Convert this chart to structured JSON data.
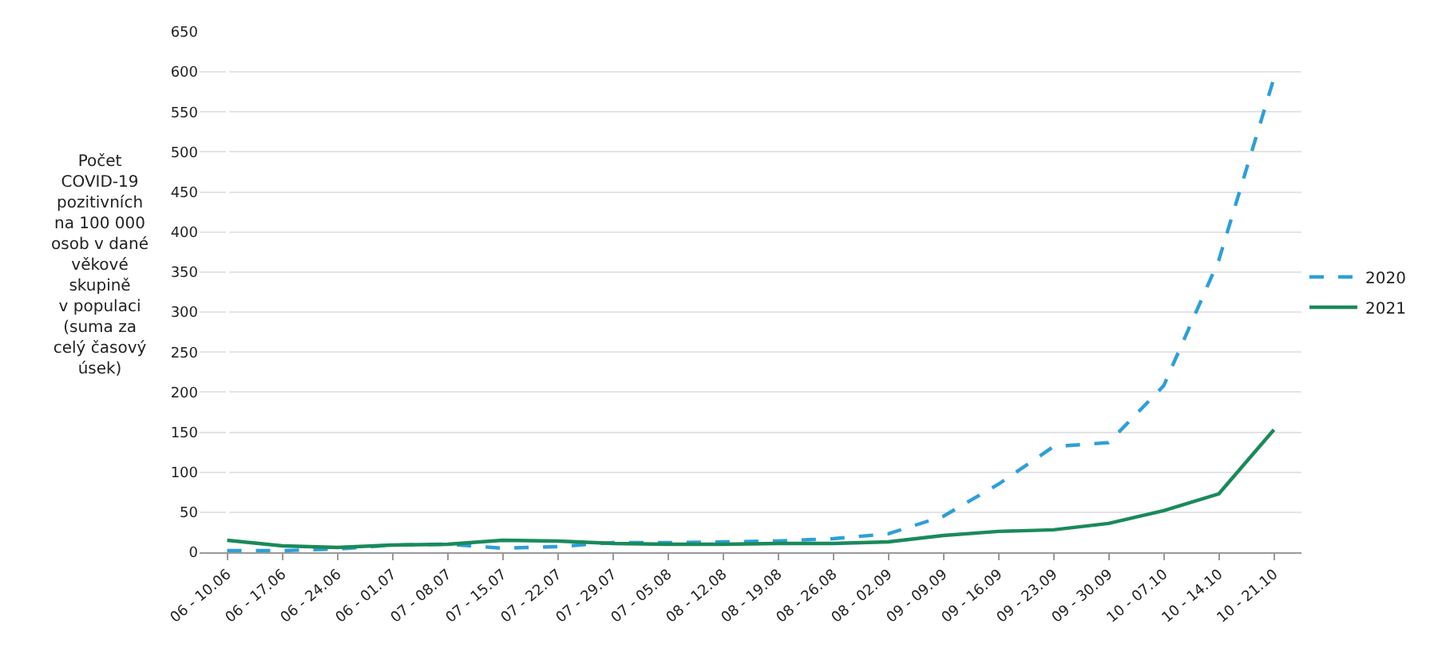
{
  "chart_data": {
    "type": "line",
    "ylabel": "Počet\nCOVID-19\npozitivních\nna 100 000\nosob v dané\nvěkové\nskupině\nv populaci\n(suma za\ncelý časový\núsek)",
    "categories": [
      "06 - 10.06",
      "06 - 17.06",
      "06 - 24.06",
      "06 - 01.07",
      "07 - 08.07",
      "07 - 15.07",
      "07 - 22.07",
      "07 - 29.07",
      "07 - 05.08",
      "08 - 12.08",
      "08 - 19.08",
      "08 - 26.08",
      "08 - 02.09",
      "09 - 09.09",
      "09 - 16.09",
      "09 - 23.09",
      "09 - 30.09",
      "10 - 07.10",
      "10 - 14.10",
      "10 - 21.10"
    ],
    "series": [
      {
        "name": "2020",
        "color": "#2e9fd8",
        "line_style": "dashed",
        "values": [
          2,
          2,
          4,
          9,
          10,
          5,
          7,
          12,
          12,
          13,
          14,
          17,
          23,
          45,
          85,
          132,
          137,
          208,
          365,
          592
        ]
      },
      {
        "name": "2021",
        "color": "#1a8a5a",
        "line_style": "solid",
        "values": [
          15,
          8,
          6,
          9,
          10,
          15,
          14,
          11,
          10,
          10,
          11,
          11,
          13,
          21,
          26,
          28,
          36,
          52,
          73,
          153
        ]
      }
    ],
    "ylim": [
      0,
      650
    ],
    "yticks": [
      0,
      50,
      100,
      150,
      200,
      250,
      300,
      350,
      400,
      450,
      500,
      550,
      600,
      650
    ],
    "grid": "y",
    "legend": "right"
  }
}
